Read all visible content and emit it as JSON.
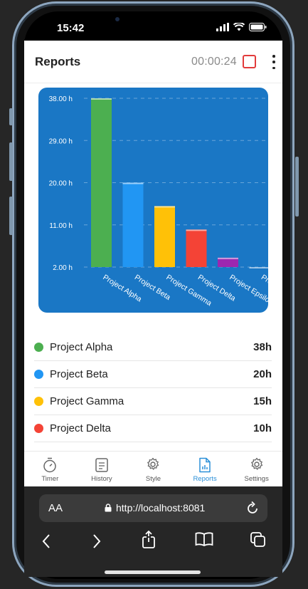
{
  "status": {
    "time": "15:42"
  },
  "header": {
    "title": "Reports",
    "timer": "00:00:24"
  },
  "chart_data": {
    "type": "bar",
    "categories": [
      "Project Alpha",
      "Project Beta",
      "Project Gamma",
      "Project Delta",
      "Project Epsilon",
      "Pro"
    ],
    "values": [
      38,
      20,
      15,
      10,
      4,
      2
    ],
    "colors": [
      "#4caf50",
      "#2196f3",
      "#ffc107",
      "#f44336",
      "#9c27b0",
      "#2e8bd6"
    ],
    "y_ticks": [
      "38.00 h",
      "29.00 h",
      "20.00 h",
      "11.00 h",
      "2.00 h"
    ],
    "ylim": [
      2,
      38
    ],
    "grid": true
  },
  "legend": [
    {
      "label": "Project Alpha",
      "value": "38h",
      "color": "#4caf50"
    },
    {
      "label": "Project Beta",
      "value": "20h",
      "color": "#2196f3"
    },
    {
      "label": "Project Gamma",
      "value": "15h",
      "color": "#ffc107"
    },
    {
      "label": "Project Delta",
      "value": "10h",
      "color": "#f44336"
    }
  ],
  "tabs": [
    {
      "label": "Timer",
      "icon": "stopwatch-icon"
    },
    {
      "label": "History",
      "icon": "history-icon"
    },
    {
      "label": "Style",
      "icon": "gear-icon"
    },
    {
      "label": "Reports",
      "icon": "report-icon",
      "active": true
    },
    {
      "label": "Settings",
      "icon": "gear-icon"
    }
  ],
  "browser": {
    "aa": "AA",
    "url": "http://localhost:8081"
  }
}
